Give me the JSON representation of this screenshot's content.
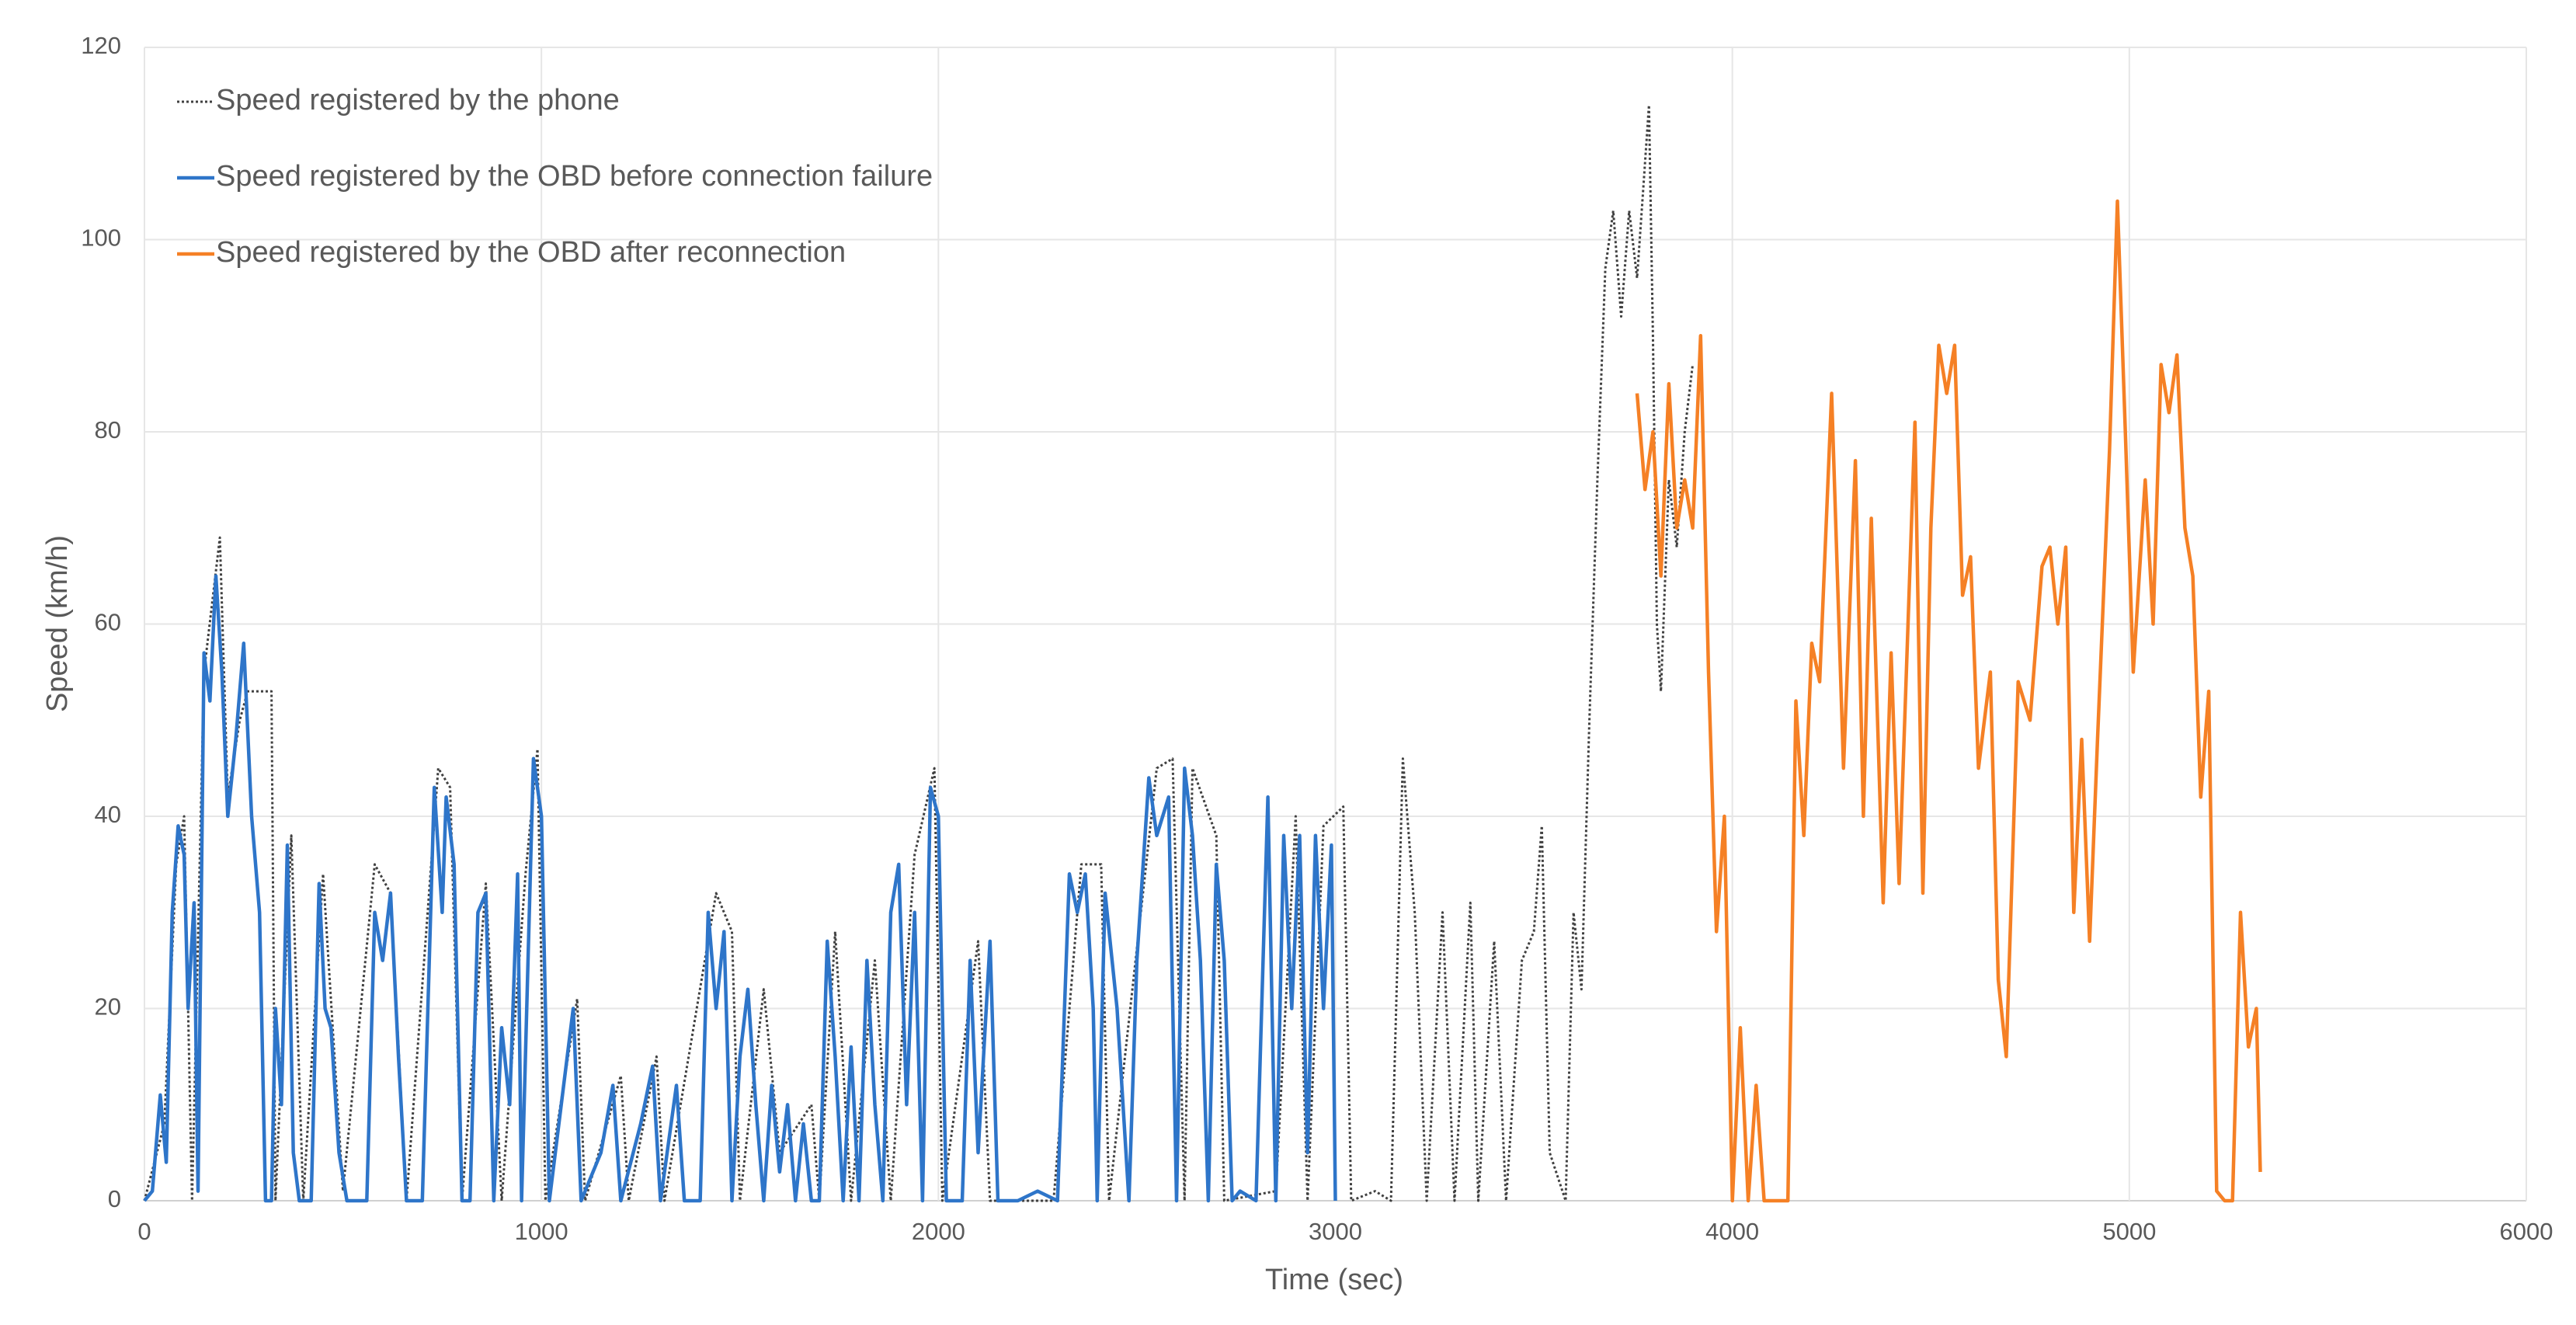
{
  "chart_data": {
    "type": "line",
    "xlabel": "Time (sec)",
    "ylabel": "Speed (km/h)",
    "xlim": [
      0,
      6000
    ],
    "ylim": [
      0,
      120
    ],
    "xticks": [
      0,
      1000,
      2000,
      3000,
      4000,
      5000,
      6000
    ],
    "yticks": [
      0,
      20,
      40,
      60,
      80,
      100,
      120
    ],
    "grid": true,
    "legend": "top-left",
    "series": [
      {
        "name": "Speed registered by the phone",
        "color": "#404040",
        "line_style": "dotted",
        "x": [
          0,
          50,
          80,
          100,
          120,
          150,
          190,
          210,
          240,
          260,
          320,
          330,
          370,
          400,
          450,
          500,
          580,
          620,
          660,
          740,
          770,
          800,
          860,
          900,
          960,
          990,
          1010,
          1090,
          1110,
          1200,
          1220,
          1290,
          1310,
          1440,
          1480,
          1500,
          1560,
          1600,
          1680,
          1700,
          1740,
          1780,
          1840,
          1880,
          1940,
          1990,
          2010,
          2100,
          2130,
          2290,
          2360,
          2410,
          2430,
          2550,
          2590,
          2620,
          2640,
          2700,
          2720,
          2850,
          2900,
          2930,
          2970,
          3020,
          3040,
          3100,
          3140,
          3170,
          3200,
          3230,
          3270,
          3300,
          3340,
          3360,
          3400,
          3430,
          3470,
          3500,
          3520,
          3540,
          3580,
          3600,
          3620,
          3640,
          3660,
          3680,
          3700,
          3720,
          3740,
          3760,
          3775,
          3790,
          3800,
          3810,
          3820,
          3840,
          3860,
          3880,
          3900
        ],
        "values": [
          0,
          8,
          35,
          40,
          0,
          55,
          69,
          42,
          50,
          53,
          53,
          0,
          38,
          0,
          34,
          1,
          35,
          32,
          0,
          45,
          43,
          0,
          33,
          0,
          34,
          47,
          0,
          21,
          0,
          13,
          0,
          15,
          0,
          32,
          28,
          0,
          22,
          5,
          10,
          0,
          28,
          0,
          25,
          0,
          36,
          45,
          0,
          27,
          0,
          0,
          35,
          35,
          0,
          45,
          46,
          0,
          45,
          38,
          0,
          1,
          40,
          0,
          39,
          41,
          0,
          1,
          0,
          46,
          30,
          0,
          30,
          0,
          31,
          0,
          27,
          0,
          25,
          28,
          39,
          5,
          0,
          30,
          22,
          50,
          75,
          97,
          103,
          92,
          103,
          96,
          105,
          114,
          90,
          60,
          53,
          75,
          68,
          80,
          87
        ]
      },
      {
        "name": "Speed registered by the OBD before connection failure",
        "color": "#2e75c9",
        "line_style": "solid",
        "x": [
          0,
          20,
          40,
          55,
          70,
          85,
          100,
          110,
          125,
          135,
          150,
          165,
          180,
          195,
          210,
          230,
          250,
          270,
          290,
          305,
          320,
          330,
          345,
          360,
          375,
          390,
          420,
          440,
          455,
          470,
          490,
          510,
          560,
          580,
          600,
          620,
          640,
          660,
          700,
          730,
          750,
          760,
          780,
          800,
          820,
          840,
          860,
          880,
          900,
          920,
          940,
          950,
          980,
          1000,
          1020,
          1050,
          1080,
          1100,
          1150,
          1180,
          1200,
          1250,
          1280,
          1300,
          1340,
          1360,
          1400,
          1420,
          1440,
          1460,
          1480,
          1500,
          1520,
          1540,
          1560,
          1580,
          1600,
          1620,
          1640,
          1660,
          1680,
          1700,
          1720,
          1740,
          1760,
          1780,
          1800,
          1820,
          1840,
          1860,
          1880,
          1900,
          1920,
          1940,
          1960,
          1980,
          2000,
          2020,
          2060,
          2080,
          2100,
          2130,
          2150,
          2200,
          2250,
          2300,
          2330,
          2350,
          2370,
          2390,
          2400,
          2420,
          2450,
          2480,
          2500,
          2530,
          2550,
          2580,
          2600,
          2620,
          2640,
          2660,
          2680,
          2700,
          2720,
          2740,
          2760,
          2800,
          2830,
          2850,
          2870,
          2890,
          2910,
          2930,
          2950,
          2970,
          2990,
          3000
        ],
        "values": [
          0,
          1,
          11,
          4,
          30,
          39,
          36,
          20,
          31,
          1,
          57,
          52,
          65,
          55,
          40,
          48,
          58,
          40,
          30,
          0,
          0,
          20,
          10,
          37,
          5,
          0,
          0,
          33,
          20,
          18,
          5,
          0,
          0,
          30,
          25,
          32,
          15,
          0,
          0,
          43,
          30,
          42,
          35,
          0,
          0,
          30,
          32,
          0,
          18,
          10,
          34,
          0,
          46,
          40,
          0,
          10,
          20,
          0,
          5,
          12,
          0,
          8,
          14,
          0,
          12,
          0,
          0,
          30,
          20,
          28,
          0,
          15,
          22,
          10,
          0,
          12,
          3,
          10,
          0,
          8,
          0,
          0,
          27,
          15,
          0,
          16,
          0,
          25,
          10,
          0,
          30,
          35,
          10,
          30,
          0,
          43,
          40,
          0,
          0,
          25,
          5,
          27,
          0,
          0,
          1,
          0,
          34,
          30,
          34,
          20,
          0,
          32,
          20,
          0,
          25,
          44,
          38,
          42,
          0,
          45,
          38,
          25,
          0,
          35,
          25,
          0,
          1,
          0,
          42,
          0,
          38,
          20,
          38,
          5,
          38,
          20,
          37,
          0
        ]
      },
      {
        "name": "Speed registered by the OBD after reconnection",
        "color": "#f58025",
        "line_style": "solid",
        "x": [
          3760,
          3780,
          3800,
          3820,
          3840,
          3860,
          3880,
          3900,
          3920,
          3940,
          3960,
          3980,
          4000,
          4020,
          4040,
          4060,
          4080,
          4140,
          4160,
          4180,
          4200,
          4220,
          4250,
          4280,
          4310,
          4330,
          4350,
          4380,
          4400,
          4420,
          4460,
          4480,
          4500,
          4520,
          4540,
          4560,
          4580,
          4600,
          4620,
          4650,
          4670,
          4690,
          4720,
          4750,
          4780,
          4800,
          4820,
          4840,
          4860,
          4880,
          4900,
          4920,
          4950,
          4970,
          4990,
          5010,
          5040,
          5060,
          5080,
          5100,
          5120,
          5140,
          5160,
          5180,
          5200,
          5220,
          5240,
          5260,
          5280,
          5300,
          5320,
          5330
        ],
        "values": [
          84,
          74,
          80,
          65,
          85,
          70,
          75,
          70,
          90,
          55,
          28,
          40,
          0,
          18,
          0,
          12,
          0,
          0,
          52,
          38,
          58,
          54,
          84,
          45,
          77,
          40,
          71,
          31,
          57,
          33,
          81,
          32,
          70,
          89,
          84,
          89,
          63,
          67,
          45,
          55,
          23,
          15,
          54,
          50,
          66,
          68,
          60,
          68,
          30,
          48,
          27,
          48,
          78,
          104,
          80,
          55,
          75,
          60,
          87,
          82,
          88,
          70,
          65,
          42,
          53,
          1,
          0,
          0,
          30,
          16,
          20,
          3
        ]
      }
    ]
  }
}
